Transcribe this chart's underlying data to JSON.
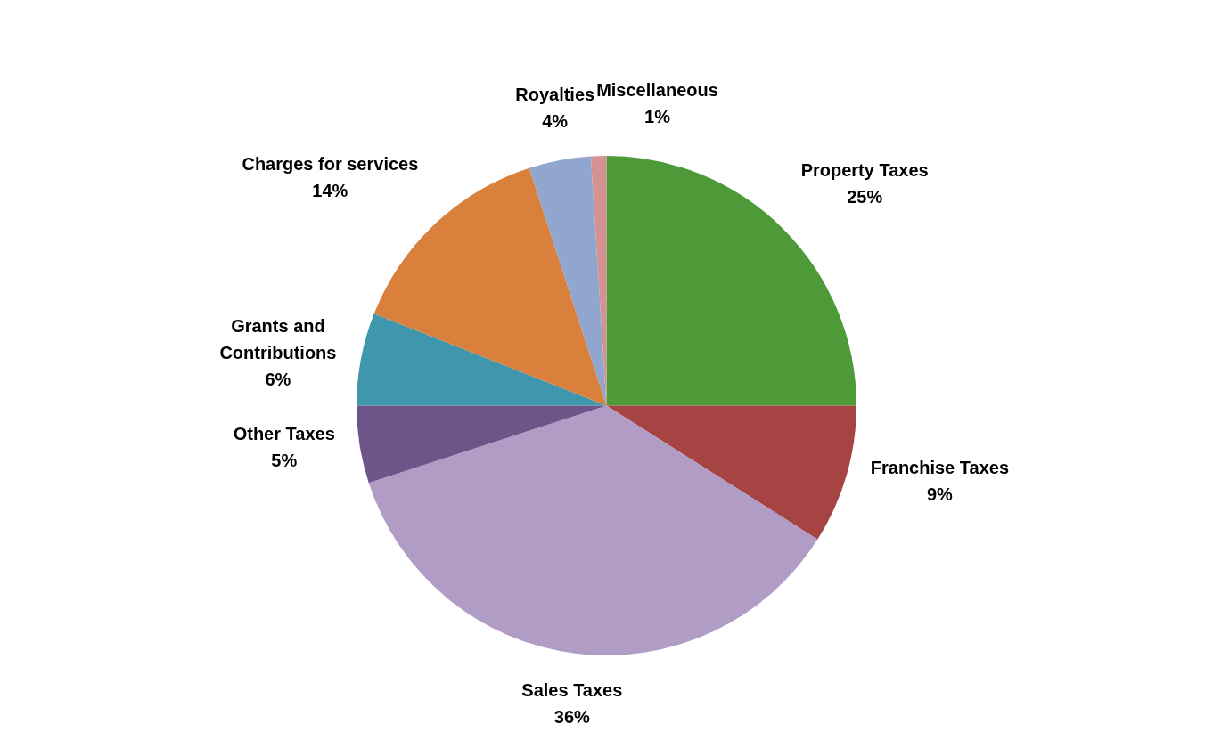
{
  "chart_data": {
    "type": "pie",
    "categories": [
      "Property Taxes",
      "Franchise Taxes",
      "Sales Taxes",
      "Other Taxes",
      "Grants and Contributions",
      "Charges for services",
      "Royalties",
      "Miscellaneous"
    ],
    "values": [
      25,
      9,
      36,
      5,
      6,
      14,
      4,
      1
    ],
    "colors": [
      "#4f9a38",
      "#a54442",
      "#b09cc5",
      "#6f548a",
      "#4096ad",
      "#d8803c",
      "#91a6cf",
      "#d49392"
    ],
    "value_labels": [
      "25%",
      "9%",
      "36%",
      "5%",
      "6%",
      "14%",
      "4%",
      "1%"
    ],
    "legend": false
  }
}
